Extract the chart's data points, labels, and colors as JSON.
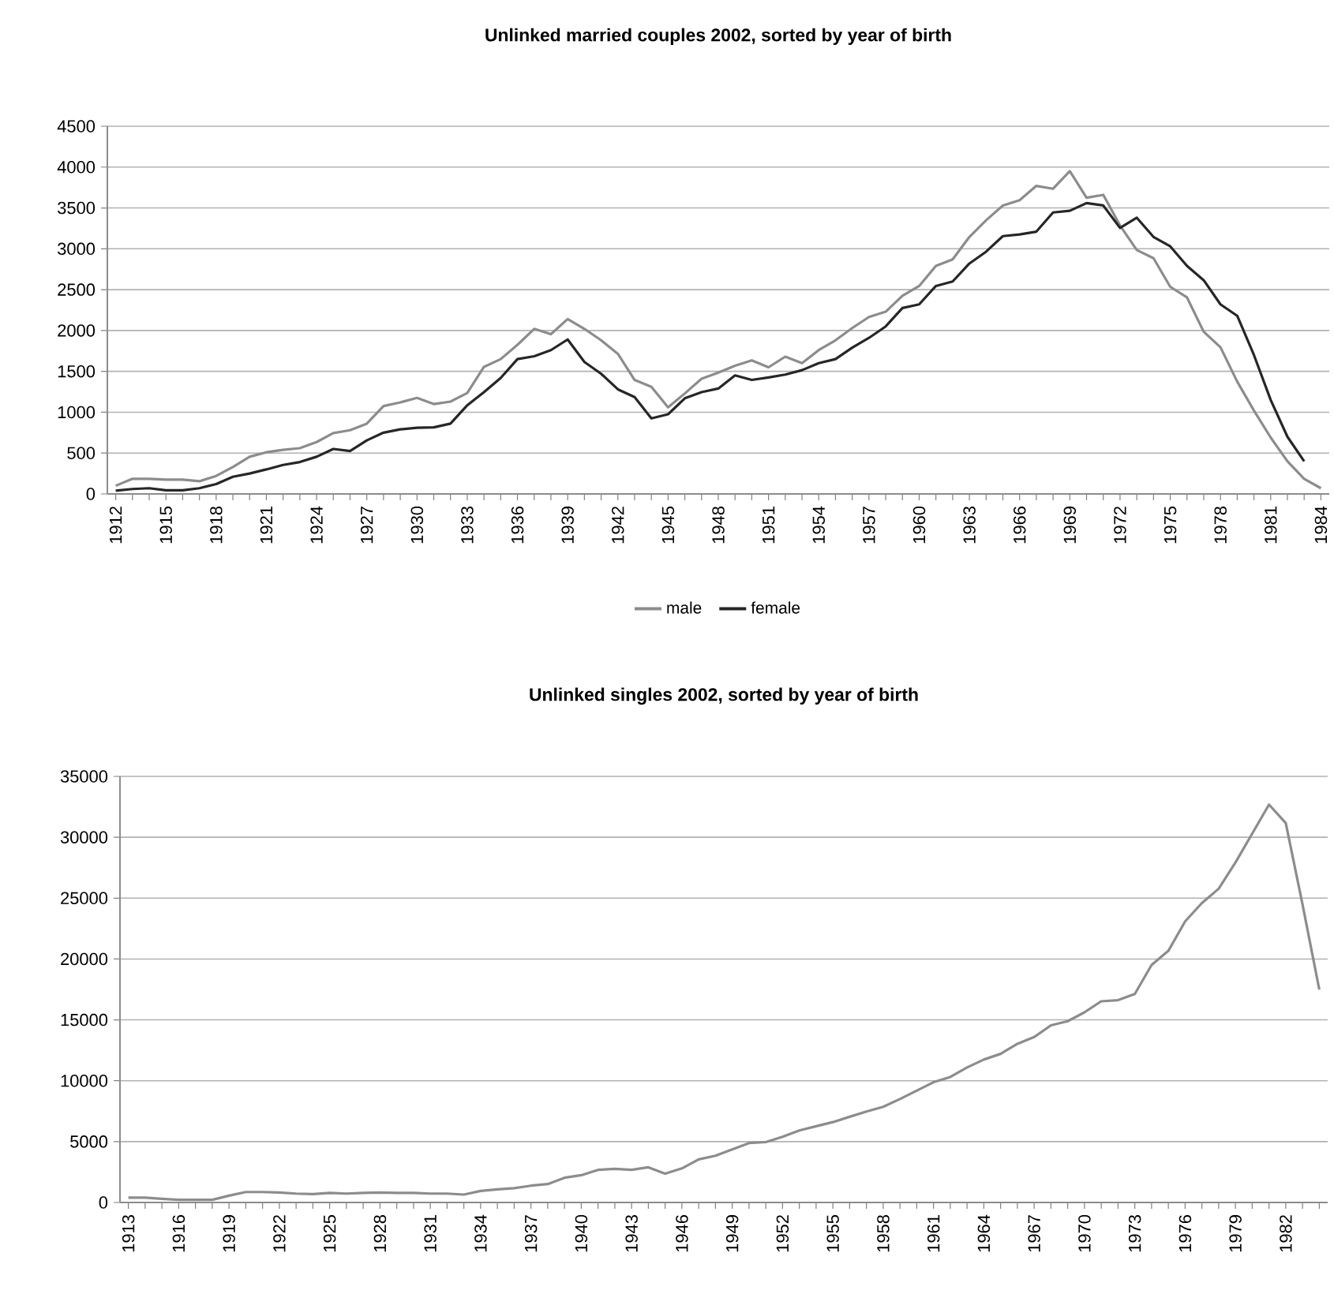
{
  "chart_data": [
    {
      "type": "line",
      "title": "Unlinked married couples 2002, sorted by year of birth",
      "categories": [
        "1912",
        null,
        null,
        "1915",
        null,
        null,
        "1918",
        null,
        null,
        "1921",
        null,
        null,
        "1924",
        null,
        null,
        "1927",
        null,
        null,
        "1930",
        null,
        null,
        "1933",
        null,
        null,
        "1936",
        null,
        null,
        "1939",
        null,
        null,
        "1942",
        null,
        null,
        "1945",
        null,
        null,
        "1948",
        null,
        null,
        "1951",
        null,
        null,
        "1954",
        null,
        null,
        "1957",
        null,
        null,
        "1960",
        null,
        null,
        "1963",
        null,
        null,
        "1966",
        null,
        null,
        "1969",
        null,
        null,
        "1972",
        null,
        null,
        "1975",
        null,
        null,
        "1978",
        null,
        null,
        "1981",
        null,
        null,
        "1984"
      ],
      "series": [
        {
          "name": "male",
          "color": "#8c8c8c",
          "values": [
            100,
            185,
            185,
            175,
            175,
            155,
            220,
            330,
            455,
            510,
            540,
            560,
            635,
            745,
            780,
            860,
            1075,
            1120,
            1175,
            1100,
            1130,
            1235,
            1555,
            1650,
            1825,
            2020,
            1955,
            2140,
            2020,
            1880,
            1715,
            1395,
            1310,
            1060,
            1230,
            1410,
            1485,
            1570,
            1635,
            1550,
            1680,
            1600,
            1760,
            1880,
            2030,
            2165,
            2230,
            2425,
            2545,
            2790,
            2870,
            3145,
            3350,
            3530,
            3595,
            3770,
            3735,
            3950,
            3625,
            3660,
            3285,
            2985,
            2885,
            2535,
            2405,
            1985,
            1795,
            1375,
            1020,
            690,
            400,
            185,
            70
          ]
        },
        {
          "name": "female",
          "color": "#262626",
          "values": [
            40,
            60,
            70,
            45,
            45,
            70,
            120,
            210,
            250,
            300,
            355,
            390,
            455,
            550,
            525,
            655,
            750,
            790,
            810,
            815,
            860,
            1085,
            1245,
            1420,
            1650,
            1685,
            1760,
            1890,
            1615,
            1470,
            1280,
            1185,
            925,
            975,
            1170,
            1245,
            1290,
            1450,
            1395,
            1425,
            1460,
            1515,
            1600,
            1650,
            1790,
            1910,
            2050,
            2275,
            2320,
            2545,
            2600,
            2820,
            2965,
            3155,
            3175,
            3210,
            3445,
            3465,
            3560,
            3530,
            3255,
            3380,
            3145,
            3030,
            2790,
            2615,
            2320,
            2180,
            1700,
            1150,
            700,
            400,
            null
          ]
        }
      ],
      "ylim": [
        0,
        4500
      ],
      "yticks": [
        0,
        500,
        1000,
        1500,
        2000,
        2500,
        3000,
        3500,
        4000,
        4500
      ],
      "grid": "y",
      "legend": "bottom"
    },
    {
      "type": "line",
      "title": "Unlinked singles 2002, sorted  by year of birth",
      "categories": [
        "1913",
        null,
        null,
        "1916",
        null,
        null,
        "1919",
        null,
        null,
        "1922",
        null,
        null,
        "1925",
        null,
        null,
        "1928",
        null,
        null,
        "1931",
        null,
        null,
        "1934",
        null,
        null,
        "1937",
        null,
        null,
        "1940",
        null,
        null,
        "1943",
        null,
        null,
        "1946",
        null,
        null,
        "1949",
        null,
        null,
        "1952",
        null,
        null,
        "1955",
        null,
        null,
        "1958",
        null,
        null,
        "1961",
        null,
        null,
        "1964",
        null,
        null,
        "1967",
        null,
        null,
        "1970",
        null,
        null,
        "1973",
        null,
        null,
        "1976",
        null,
        null,
        "1979",
        null,
        null,
        "1982",
        null,
        null
      ],
      "series": [
        {
          "color": "#8c8c8c",
          "values": [
            400,
            400,
            300,
            220,
            220,
            220,
            560,
            860,
            860,
            820,
            730,
            690,
            780,
            730,
            780,
            820,
            780,
            780,
            730,
            730,
            650,
            950,
            1080,
            1170,
            1380,
            1510,
            2030,
            2240,
            2680,
            2760,
            2680,
            2890,
            2370,
            2800,
            3540,
            3840,
            4360,
            4880,
            4960,
            5400,
            5910,
            6260,
            6600,
            7040,
            7470,
            7860,
            8500,
            9190,
            9880,
            10310,
            11090,
            11740,
            12210,
            13030,
            13590,
            14550,
            14890,
            15620,
            16530,
            16620,
            17130,
            19510,
            20670,
            23090,
            24600,
            25770,
            27930,
            30300,
            32680,
            31170,
            24480,
            17480
          ]
        }
      ],
      "ylim": [
        0,
        35000
      ],
      "yticks": [
        0,
        5000,
        10000,
        15000,
        20000,
        25000,
        30000,
        35000
      ],
      "grid": "y"
    }
  ]
}
